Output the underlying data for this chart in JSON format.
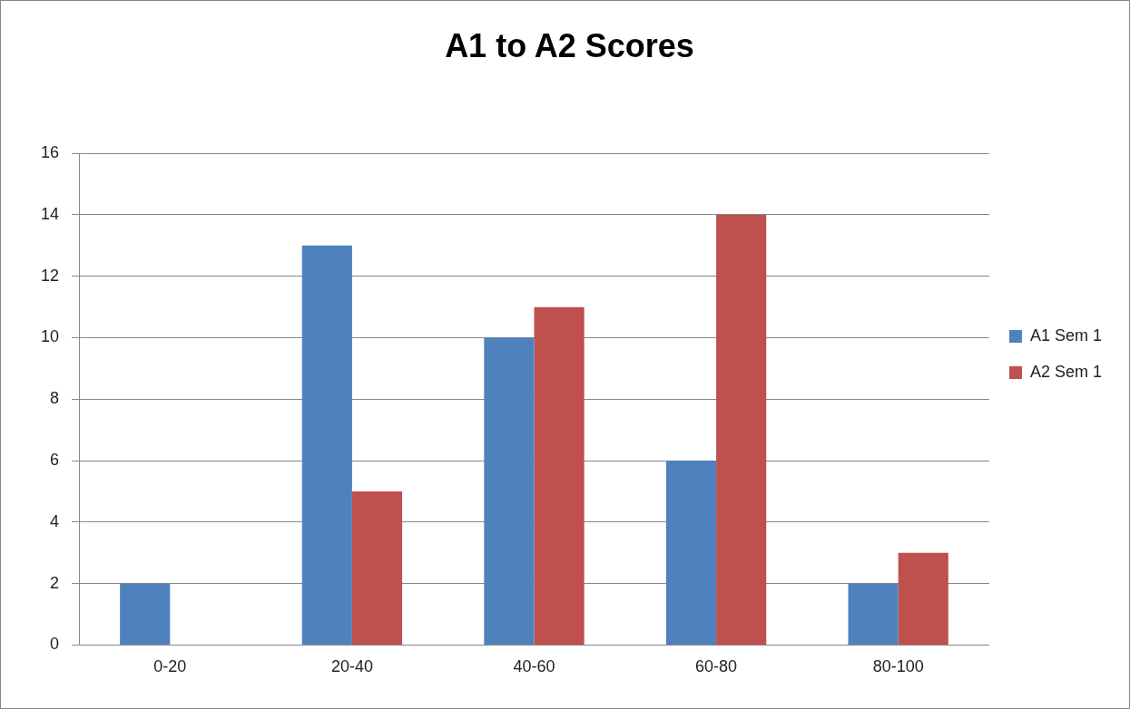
{
  "chart_data": {
    "type": "bar",
    "title": "A1 to A2 Scores",
    "categories": [
      "0-20",
      "20-40",
      "40-60",
      "60-80",
      "80-100"
    ],
    "series": [
      {
        "name": "A1 Sem 1",
        "color": "#4f81bd",
        "values": [
          2,
          13,
          10,
          6,
          2
        ]
      },
      {
        "name": "A2 Sem 1",
        "color": "#c0504d",
        "values": [
          0,
          5,
          11,
          14,
          3
        ]
      }
    ],
    "ylim": [
      0,
      16
    ],
    "yticks": [
      0,
      2,
      4,
      6,
      8,
      10,
      12,
      14,
      16
    ],
    "grid": "y",
    "legend": "right"
  }
}
